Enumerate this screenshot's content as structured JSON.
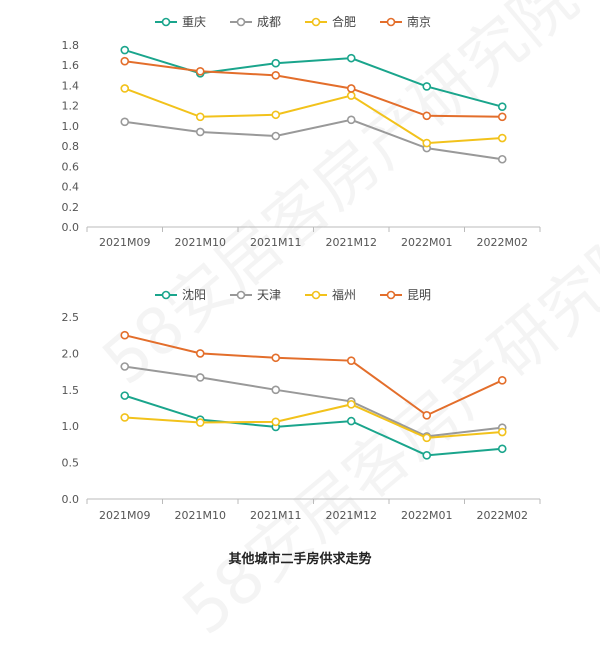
{
  "caption": "其他城市二手房供求走势",
  "watermark": "58安居客房产研究院",
  "chart_data": [
    {
      "type": "line",
      "categories": [
        "2021M09",
        "2021M10",
        "2021M11",
        "2021M12",
        "2022M01",
        "2022M02"
      ],
      "ylim": [
        0,
        1.8
      ],
      "yticks": [
        "0.0",
        "0.2",
        "0.4",
        "0.6",
        "0.8",
        "1.0",
        "1.2",
        "1.4",
        "1.6",
        "1.8"
      ],
      "ytick_values": [
        0,
        0.2,
        0.4,
        0.6,
        0.8,
        1.0,
        1.2,
        1.4,
        1.6,
        1.8
      ],
      "legend_position": "top-center",
      "grid": false,
      "series": [
        {
          "name": "重庆",
          "color": "#1aa58c",
          "values": [
            1.75,
            1.52,
            1.62,
            1.67,
            1.39,
            1.19
          ]
        },
        {
          "name": "成都",
          "color": "#999999",
          "values": [
            1.04,
            0.94,
            0.9,
            1.06,
            0.78,
            0.67
          ]
        },
        {
          "name": "合肥",
          "color": "#f2c21b",
          "values": [
            1.37,
            1.09,
            1.11,
            1.3,
            0.83,
            0.88
          ]
        },
        {
          "name": "南京",
          "color": "#e36e2b",
          "values": [
            1.64,
            1.54,
            1.5,
            1.37,
            1.1,
            1.09
          ]
        }
      ]
    },
    {
      "type": "line",
      "categories": [
        "2021M09",
        "2021M10",
        "2021M11",
        "2021M12",
        "2022M01",
        "2022M02"
      ],
      "ylim": [
        0,
        2.5
      ],
      "yticks": [
        "0.0",
        "0.5",
        "1.0",
        "1.5",
        "2.0",
        "2.5"
      ],
      "ytick_values": [
        0,
        0.5,
        1.0,
        1.5,
        2.0,
        2.5
      ],
      "legend_position": "top-center",
      "grid": false,
      "series": [
        {
          "name": "沈阳",
          "color": "#1aa58c",
          "values": [
            1.42,
            1.09,
            0.99,
            1.07,
            0.6,
            0.69
          ]
        },
        {
          "name": "天津",
          "color": "#999999",
          "values": [
            1.82,
            1.67,
            1.5,
            1.34,
            0.86,
            0.98
          ]
        },
        {
          "name": "福州",
          "color": "#f2c21b",
          "values": [
            1.12,
            1.05,
            1.06,
            1.3,
            0.84,
            0.92
          ]
        },
        {
          "name": "昆明",
          "color": "#e36e2b",
          "values": [
            2.25,
            2.0,
            1.94,
            1.9,
            1.15,
            1.63
          ]
        }
      ]
    }
  ]
}
